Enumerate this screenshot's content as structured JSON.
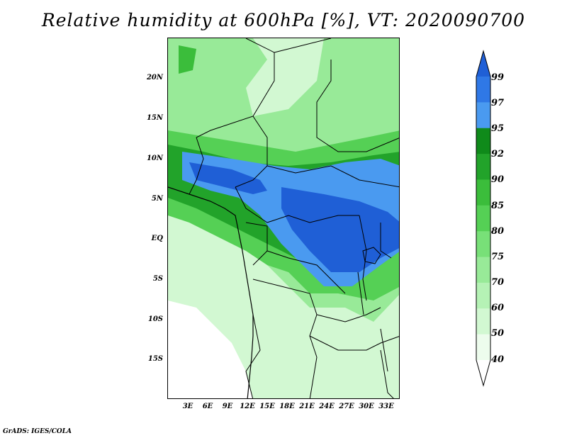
{
  "title": "Relative humidity at 600hPa [%], VT: 2020090700",
  "credit": "GrADS: IGES/COLA",
  "latitude_labels": [
    "20N",
    "15N",
    "10N",
    "5N",
    "EQ",
    "5S",
    "10S",
    "15S"
  ],
  "longitude_labels": [
    "3E",
    "6E",
    "9E",
    "12E",
    "15E",
    "18E",
    "21E",
    "24E",
    "27E",
    "30E",
    "33E"
  ],
  "colorbar": {
    "levels": [
      "99",
      "97",
      "95",
      "92",
      "90",
      "85",
      "80",
      "75",
      "70",
      "60",
      "50",
      "40"
    ],
    "colors": [
      "#1f5fd6",
      "#2f78e6",
      "#4a9af0",
      "#0f8a1a",
      "#22a32a",
      "#3bbd3b",
      "#55d055",
      "#78e078",
      "#98ea98",
      "#b5f2b5",
      "#d2f8d2",
      "#edfced"
    ]
  }
}
